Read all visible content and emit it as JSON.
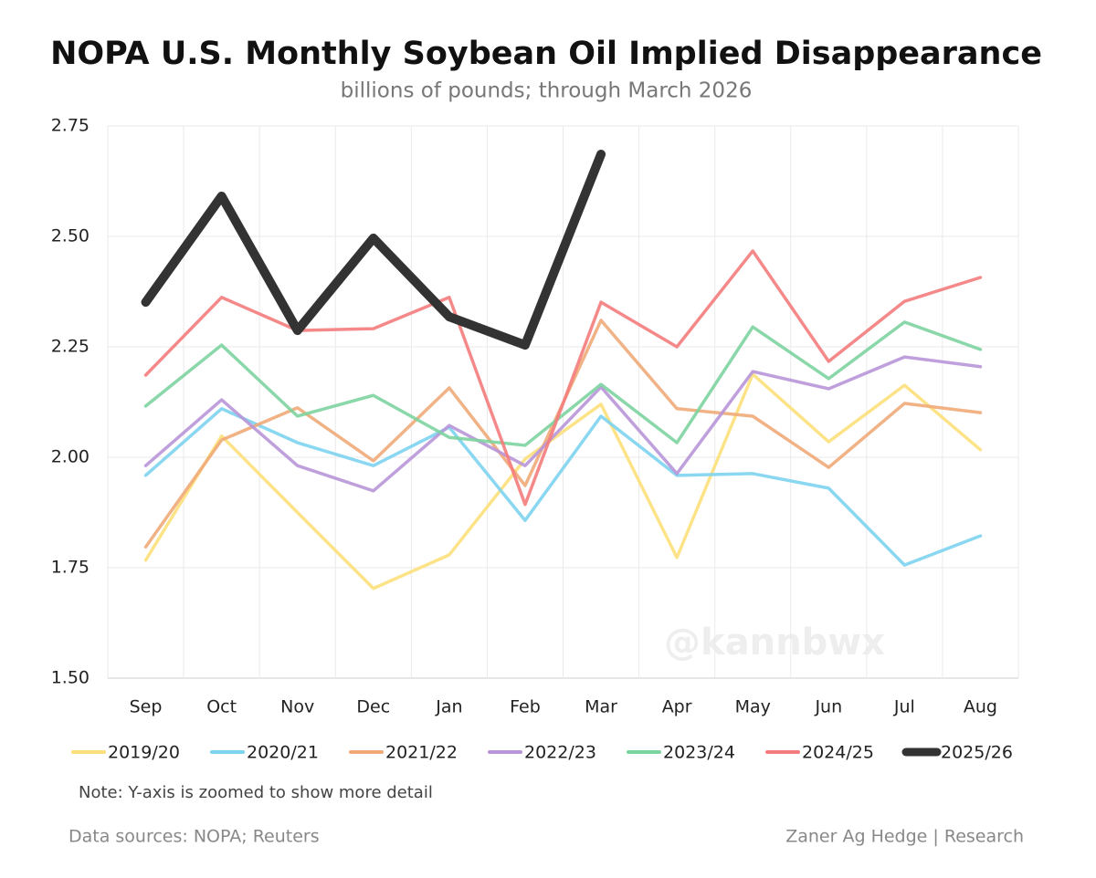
{
  "chart_data": {
    "type": "line",
    "title": "NOPA U.S. Monthly Soybean Oil Implied Disappearance",
    "subtitle": "billions of pounds; through March 2026",
    "categories": [
      "Sep",
      "Oct",
      "Nov",
      "Dec",
      "Jan",
      "Feb",
      "Mar",
      "Apr",
      "May",
      "Jun",
      "Jul",
      "Aug"
    ],
    "series": [
      {
        "name": "2019/20",
        "color": "#fde07a",
        "values": [
          1.767,
          2.048,
          1.875,
          1.703,
          1.779,
          1.996,
          2.12,
          1.773,
          2.188,
          2.035,
          2.163,
          2.017
        ]
      },
      {
        "name": "2020/21",
        "color": "#7dd3f0",
        "values": [
          1.959,
          2.11,
          2.033,
          1.981,
          2.068,
          1.857,
          2.093,
          1.959,
          1.963,
          1.93,
          1.756,
          1.822
        ]
      },
      {
        "name": "2021/22",
        "color": "#f0aa78",
        "values": [
          1.797,
          2.039,
          2.112,
          1.992,
          2.157,
          1.936,
          2.31,
          2.11,
          2.093,
          1.977,
          2.122,
          2.101
        ]
      },
      {
        "name": "2022/23",
        "color": "#b896d8",
        "values": [
          1.981,
          2.13,
          1.981,
          1.924,
          2.072,
          1.981,
          2.159,
          1.963,
          2.194,
          2.155,
          2.227,
          2.205
        ]
      },
      {
        "name": "2023/24",
        "color": "#7dd3a0",
        "values": [
          2.116,
          2.254,
          2.093,
          2.14,
          2.045,
          2.027,
          2.165,
          2.033,
          2.295,
          2.178,
          2.306,
          2.244
        ]
      },
      {
        "name": "2024/25",
        "color": "#f47c7c",
        "values": [
          2.186,
          2.362,
          2.287,
          2.291,
          2.362,
          1.893,
          2.351,
          2.25,
          2.467,
          2.217,
          2.353,
          2.407
        ]
      },
      {
        "name": "2025/26",
        "color": "#333333",
        "values": [
          2.351,
          2.591,
          2.287,
          2.496,
          2.318,
          2.254,
          2.686,
          null,
          null,
          null,
          null,
          null
        ]
      }
    ],
    "ylim": [
      1.5,
      2.75
    ],
    "yticks": [
      {
        "value": 1.5,
        "label": "1.50"
      },
      {
        "value": 1.75,
        "label": "1.75"
      },
      {
        "value": 2,
        "label": "2.00"
      },
      {
        "value": 2.25,
        "label": "2.25"
      },
      {
        "value": 2.5,
        "label": "2.50"
      },
      2.75
    ],
    "grid": true,
    "note": "Note: Y-axis is zoomed to show more detail",
    "source": "Data sources: NOPA; Reuters",
    "credit": "Zaner Ag Hedge | Research",
    "watermark": "@kannbwx"
  }
}
